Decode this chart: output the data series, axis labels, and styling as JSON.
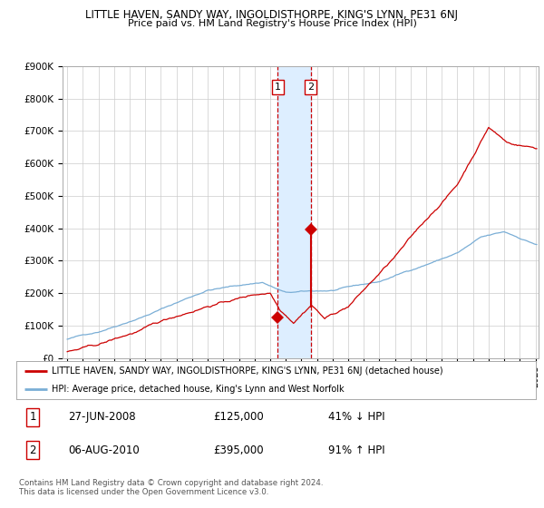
{
  "title": "LITTLE HAVEN, SANDY WAY, INGOLDISTHORPE, KING'S LYNN, PE31 6NJ",
  "subtitle": "Price paid vs. HM Land Registry's House Price Index (HPI)",
  "ylim": [
    0,
    900000
  ],
  "yticks": [
    0,
    100000,
    200000,
    300000,
    400000,
    500000,
    600000,
    700000,
    800000,
    900000
  ],
  "ytick_labels": [
    "£0",
    "£100K",
    "£200K",
    "£300K",
    "£400K",
    "£500K",
    "£600K",
    "£700K",
    "£800K",
    "£900K"
  ],
  "year_start": 1995,
  "year_end": 2025,
  "hpi_color": "#7aaed6",
  "price_color": "#cc0000",
  "sale1_date": 2008.49,
  "sale1_price": 125000,
  "sale2_date": 2010.59,
  "sale2_price": 395000,
  "shade_color": "#ddeeff",
  "background_color": "#ffffff",
  "grid_color": "#cccccc",
  "legend_label_red": "LITTLE HAVEN, SANDY WAY, INGOLDISTHORPE, KING'S LYNN, PE31 6NJ (detached house)",
  "legend_label_blue": "HPI: Average price, detached house, King's Lynn and West Norfolk",
  "table_row1_num": "1",
  "table_row1_date": "27-JUN-2008",
  "table_row1_price": "£125,000",
  "table_row1_hpi": "41% ↓ HPI",
  "table_row2_num": "2",
  "table_row2_date": "06-AUG-2010",
  "table_row2_price": "£395,000",
  "table_row2_hpi": "91% ↑ HPI",
  "footer": "Contains HM Land Registry data © Crown copyright and database right 2024.\nThis data is licensed under the Open Government Licence v3.0."
}
